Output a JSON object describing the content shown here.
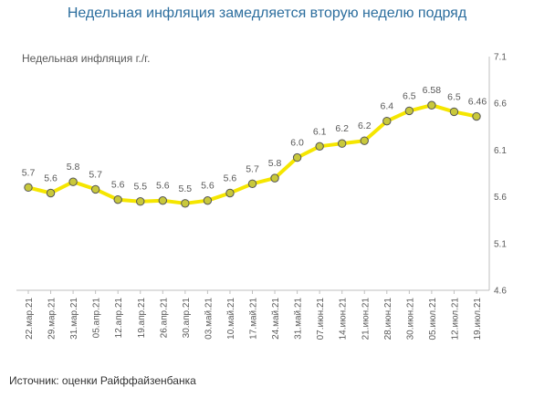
{
  "chart_data": {
    "type": "line",
    "title": "Недельная инфляция замедляется вторую неделю подряд",
    "series_label": "Недельная инфляция г./г.",
    "source": "Источник: оценки Райффайзенбанка",
    "categories": [
      "22.мар.21",
      "",
      "29.мар.21",
      "",
      "31.мар.21",
      "",
      "05.апр.21",
      "",
      "12.апр.21",
      "",
      "19.апр.21",
      "",
      "26.апр.21",
      "",
      "30.апр.21",
      "",
      "03.май.21",
      "",
      "10.май.21",
      "",
      "17.май.21",
      "",
      "24.май.21",
      "",
      "31.май.21",
      "",
      "07.июн.21",
      "",
      "14.июн.21",
      "",
      "21.июн.21",
      "",
      "28.июн.21",
      "",
      "30.июн.21",
      "",
      "05.июл.21",
      "",
      "12.июл.21",
      "",
      "19.июл.21"
    ],
    "x": [
      "22.мар.21",
      "29.мар.21",
      "31.мар.21",
      "05.апр.21",
      "12.апр.21",
      "19.апр.21",
      "26.апр.21",
      "30.апр.21",
      "03.май.21",
      "10.май.21",
      "17.май.21",
      "24.май.21",
      "31.май.21",
      "07.июн.21",
      "14.июн.21",
      "21.июн.21",
      "28.июн.21",
      "30.июн.21",
      "05.июл.21",
      "12.июл.21",
      "19.июл.21"
    ],
    "values": [
      5.7,
      5.64,
      5.76,
      5.68,
      5.57,
      5.55,
      5.56,
      5.53,
      5.56,
      5.64,
      5.74,
      5.8,
      6.02,
      6.14,
      6.17,
      6.2,
      6.41,
      6.52,
      6.58,
      6.51,
      6.46
    ],
    "value_labels": [
      "5.7",
      "5.6",
      "5.8",
      "5.7",
      "5.6",
      "5.5",
      "5.6",
      "5.5",
      "5.6",
      "5.6",
      "5.7",
      "5.8",
      "6.0",
      "6.1",
      "6.2",
      "6.2",
      "6.4",
      "6.5",
      "6.58",
      "6.5",
      "6.46"
    ],
    "ylim": [
      4.6,
      7.1
    ],
    "y_ticks": [
      "4.6",
      "5.1",
      "5.6",
      "6.1",
      "6.6",
      "7.1"
    ],
    "y_axis_side": "right",
    "grid": false,
    "line_color": "#f5e600",
    "marker_fill": "#c8c83c",
    "marker_stroke": "#555555"
  }
}
